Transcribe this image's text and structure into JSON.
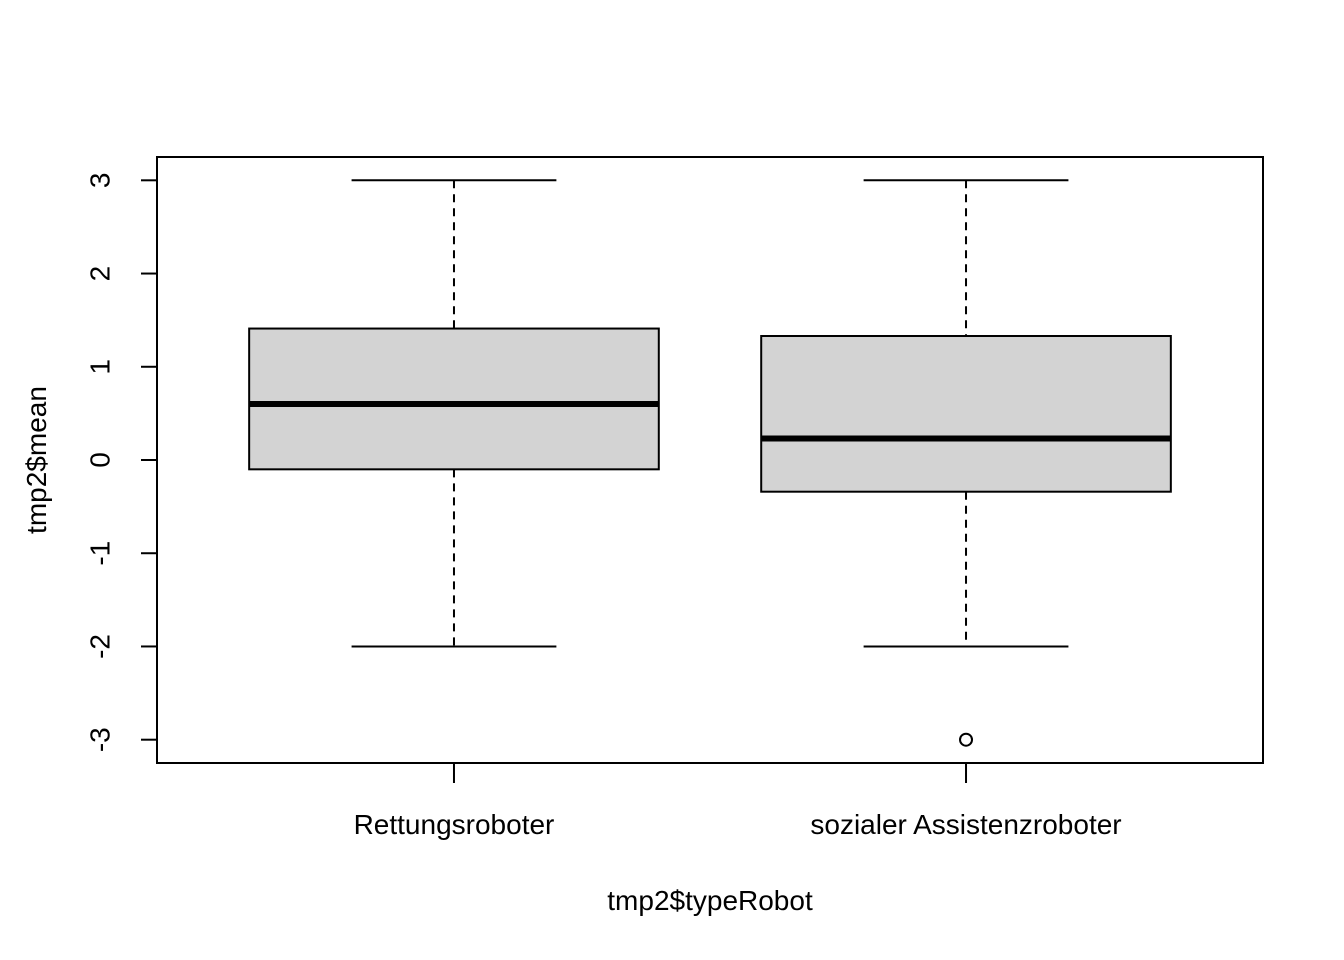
{
  "chart_data": {
    "type": "boxplot",
    "title": "",
    "xlabel": "tmp2$typeRobot",
    "ylabel": "tmp2$mean",
    "categories": [
      "Rettungsroboter",
      "sozialer Assistenzroboter"
    ],
    "boxes": [
      {
        "category": "Rettungsroboter",
        "whisker_low": -2,
        "q1": -0.1,
        "median": 0.6,
        "q3": 1.41,
        "whisker_high": 3,
        "outliers": []
      },
      {
        "category": "sozialer Assistenzroboter",
        "whisker_low": -2,
        "q1": -0.34,
        "median": 0.23,
        "q3": 1.33,
        "whisker_high": 3,
        "outliers": [
          -3
        ]
      }
    ],
    "yticks": [
      "-3",
      "-2",
      "-1",
      "0",
      "1",
      "2",
      "3"
    ],
    "ylim": [
      -3.25,
      3.25
    ],
    "grid": false,
    "box_fill": "#d3d3d3",
    "line_color": "#000000"
  }
}
